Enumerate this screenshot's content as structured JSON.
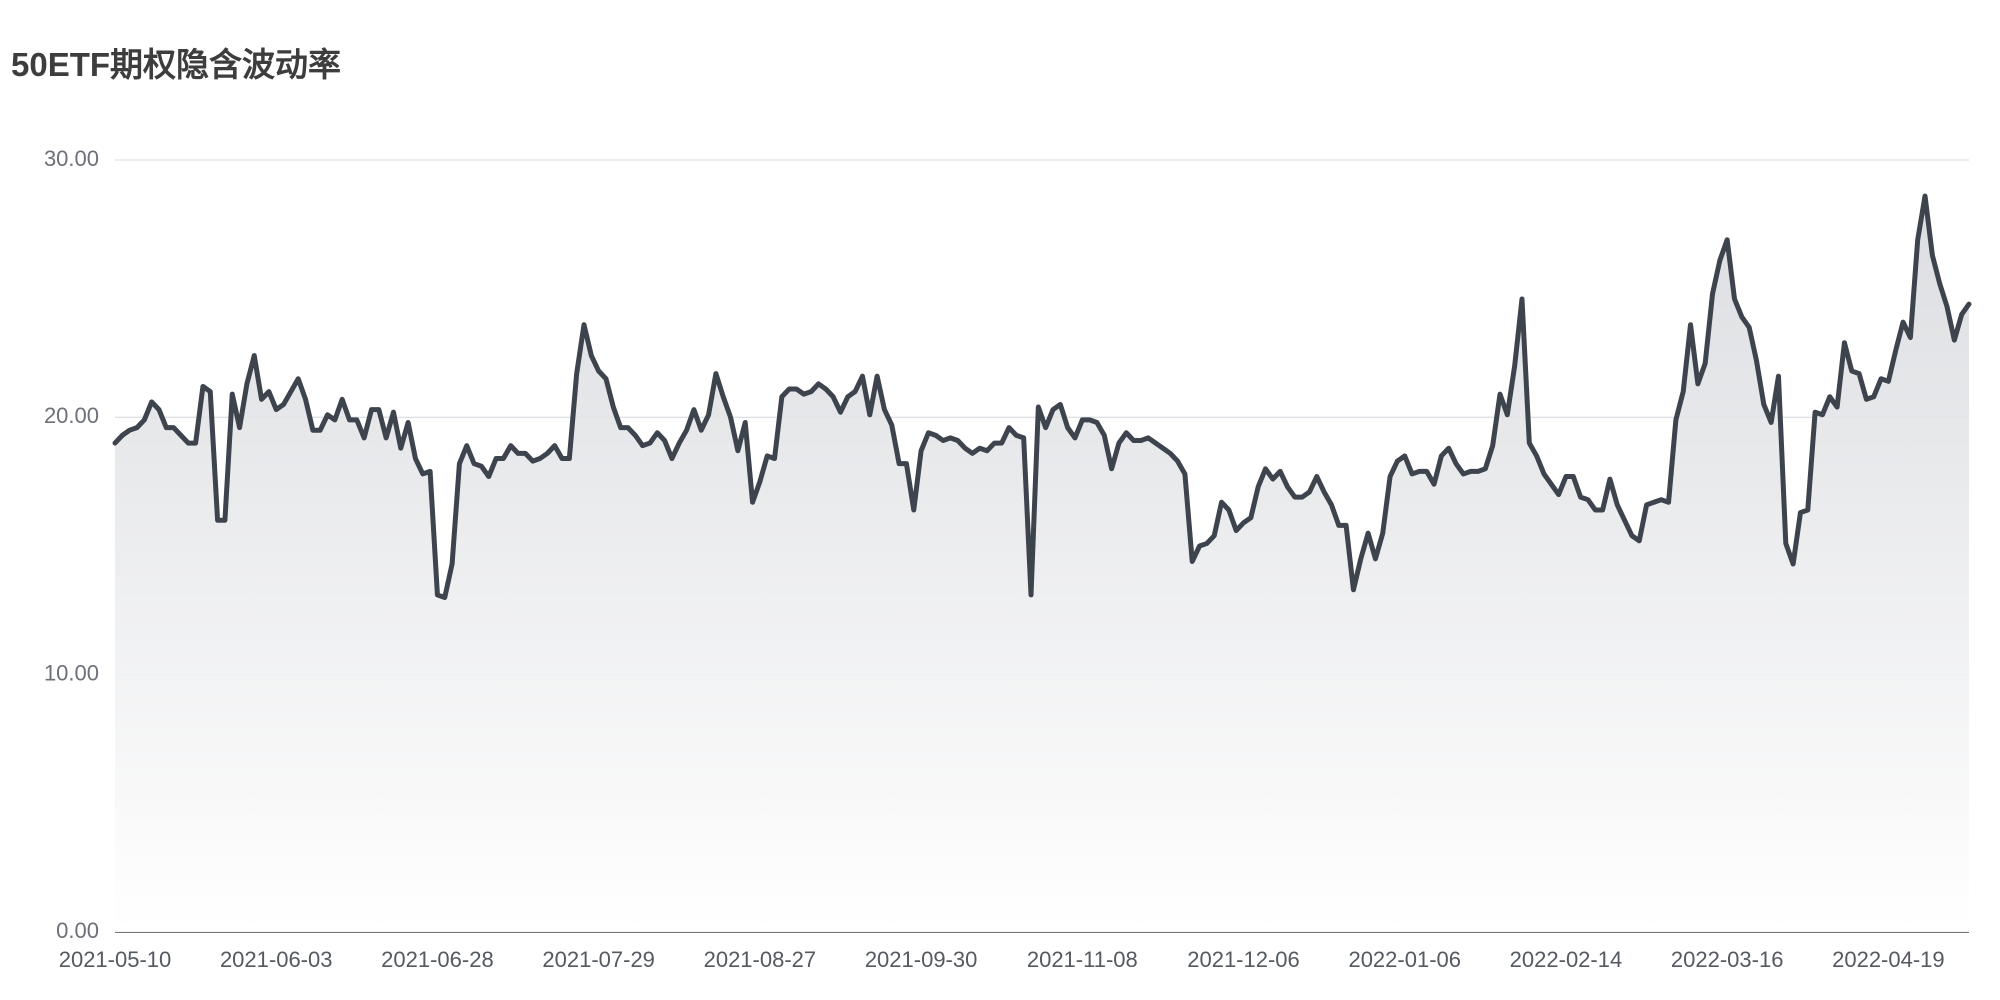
{
  "chart_data": {
    "type": "line",
    "title": "50ETF期权隐含波动率",
    "categories": [
      "2021-05-10",
      null,
      null,
      null,
      null,
      null,
      null,
      null,
      null,
      null,
      null,
      null,
      null,
      null,
      null,
      null,
      null,
      null,
      null,
      null,
      null,
      null,
      "2021-06-03",
      null,
      null,
      null,
      null,
      null,
      null,
      null,
      null,
      null,
      null,
      null,
      null,
      null,
      null,
      null,
      null,
      null,
      null,
      null,
      null,
      null,
      "2021-06-28",
      null,
      null,
      null,
      null,
      null,
      null,
      null,
      null,
      null,
      null,
      null,
      null,
      null,
      null,
      null,
      null,
      null,
      null,
      null,
      null,
      null,
      "2021-07-29",
      null,
      null,
      null,
      null,
      null,
      null,
      null,
      null,
      null,
      null,
      null,
      null,
      null,
      null,
      null,
      null,
      null,
      null,
      null,
      null,
      null,
      "2021-08-27",
      null,
      null,
      null,
      null,
      null,
      null,
      null,
      null,
      null,
      null,
      null,
      null,
      null,
      null,
      null,
      null,
      null,
      null,
      null,
      null,
      null,
      "2021-09-30",
      null,
      null,
      null,
      null,
      null,
      null,
      null,
      null,
      null,
      null,
      null,
      null,
      null,
      null,
      null,
      null,
      null,
      null,
      null,
      null,
      null,
      "2021-11-08",
      null,
      null,
      null,
      null,
      null,
      null,
      null,
      null,
      null,
      null,
      null,
      null,
      null,
      null,
      null,
      null,
      null,
      null,
      null,
      null,
      null,
      "2021-12-06",
      null,
      null,
      null,
      null,
      null,
      null,
      null,
      null,
      null,
      null,
      null,
      null,
      null,
      null,
      null,
      null,
      null,
      null,
      null,
      null,
      null,
      "2022-01-06",
      null,
      null,
      null,
      null,
      null,
      null,
      null,
      null,
      null,
      null,
      null,
      null,
      null,
      null,
      null,
      null,
      null,
      null,
      null,
      null,
      null,
      "2022-02-14",
      null,
      null,
      null,
      null,
      null,
      null,
      null,
      null,
      null,
      null,
      null,
      null,
      null,
      null,
      null,
      null,
      null,
      null,
      null,
      null,
      null,
      "2022-03-16",
      null,
      null,
      null,
      null,
      null,
      null,
      null,
      null,
      null,
      null,
      null,
      null,
      null,
      null,
      null,
      null,
      null,
      null,
      null,
      null,
      null,
      "2022-04-19",
      null,
      null,
      null,
      null,
      null,
      null,
      null,
      null,
      null,
      null,
      null
    ],
    "values": [
      19.0,
      19.3,
      19.5,
      19.6,
      19.9,
      20.6,
      20.3,
      19.6,
      19.6,
      19.3,
      19.0,
      19.0,
      21.2,
      21.0,
      16.0,
      16.0,
      20.9,
      19.6,
      21.3,
      22.4,
      20.7,
      21.0,
      20.3,
      20.5,
      21.0,
      21.5,
      20.7,
      19.5,
      19.5,
      20.1,
      19.9,
      20.7,
      19.9,
      19.9,
      19.2,
      20.3,
      20.3,
      19.2,
      20.2,
      18.8,
      19.8,
      18.4,
      17.8,
      17.9,
      13.1,
      13.0,
      14.3,
      18.2,
      18.9,
      18.2,
      18.1,
      17.7,
      18.4,
      18.4,
      18.9,
      18.6,
      18.6,
      18.3,
      18.4,
      18.6,
      18.9,
      18.4,
      18.4,
      21.7,
      23.6,
      22.4,
      21.8,
      21.5,
      20.4,
      19.6,
      19.6,
      19.3,
      18.9,
      19.0,
      19.4,
      19.1,
      18.4,
      19.0,
      19.5,
      20.3,
      19.5,
      20.1,
      21.7,
      20.8,
      20.0,
      18.7,
      19.8,
      16.7,
      17.5,
      18.5,
      18.4,
      20.8,
      21.1,
      21.1,
      20.9,
      21.0,
      21.3,
      21.1,
      20.8,
      20.2,
      20.8,
      21.0,
      21.6,
      20.1,
      21.6,
      20.3,
      19.7,
      18.2,
      18.2,
      16.4,
      18.7,
      19.4,
      19.3,
      19.1,
      19.2,
      19.1,
      18.8,
      18.6,
      18.8,
      18.7,
      19.0,
      19.0,
      19.6,
      19.3,
      19.2,
      13.1,
      20.4,
      19.6,
      20.3,
      20.5,
      19.6,
      19.2,
      19.9,
      19.9,
      19.8,
      19.3,
      18.0,
      19.0,
      19.4,
      19.1,
      19.1,
      19.2,
      19.0,
      18.8,
      18.6,
      18.3,
      17.8,
      14.4,
      15.0,
      15.1,
      15.4,
      16.7,
      16.4,
      15.6,
      15.9,
      16.1,
      17.3,
      18.0,
      17.6,
      17.9,
      17.3,
      16.9,
      16.9,
      17.1,
      17.7,
      17.1,
      16.6,
      15.8,
      15.8,
      13.3,
      14.5,
      15.5,
      14.5,
      15.5,
      17.7,
      18.3,
      18.5,
      17.8,
      17.9,
      17.9,
      17.4,
      18.5,
      18.8,
      18.2,
      17.8,
      17.9,
      17.9,
      18.0,
      18.9,
      20.9,
      20.1,
      22.0,
      24.6,
      19.0,
      18.5,
      17.8,
      17.4,
      17.0,
      17.7,
      17.7,
      16.9,
      16.8,
      16.4,
      16.4,
      17.6,
      16.6,
      16.0,
      15.4,
      15.2,
      16.6,
      16.7,
      16.8,
      16.7,
      19.9,
      21.0,
      23.6,
      21.3,
      22.1,
      24.8,
      26.1,
      26.9,
      24.6,
      23.9,
      23.5,
      22.2,
      20.5,
      19.8,
      21.6,
      15.1,
      14.3,
      16.3,
      16.4,
      20.2,
      20.1,
      20.8,
      20.4,
      22.9,
      21.8,
      21.7,
      20.7,
      20.8,
      21.5,
      21.4,
      22.6,
      23.7,
      23.1,
      26.9,
      28.6,
      26.3,
      25.2,
      24.3,
      23.0,
      24.0,
      24.4
    ],
    "color": "#3d444d",
    "area": true,
    "grid": true,
    "ylim": [
      0,
      30
    ],
    "yticks": [
      {
        "value": 0,
        "label": "0.00"
      },
      {
        "value": 10,
        "label": "10.00"
      },
      {
        "value": 20,
        "label": "20.00"
      },
      {
        "value": 30,
        "label": "30.00"
      }
    ]
  }
}
